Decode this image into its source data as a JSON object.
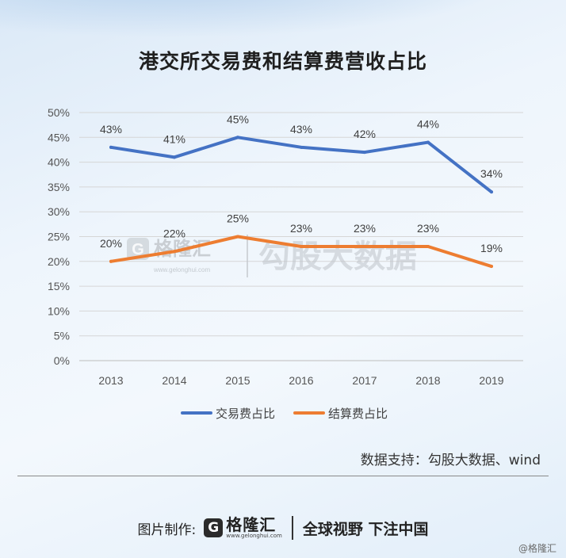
{
  "title": "港交所交易费和结算费营收占比",
  "chart_data": {
    "type": "line",
    "categories": [
      "2013",
      "2014",
      "2015",
      "2016",
      "2017",
      "2018",
      "2019"
    ],
    "series": [
      {
        "name": "交易费占比",
        "color": "#4472c4",
        "values": [
          43,
          41,
          45,
          43,
          42,
          44,
          34
        ],
        "labels": [
          "43%",
          "41%",
          "45%",
          "43%",
          "42%",
          "44%",
          "34%"
        ]
      },
      {
        "name": "结算费占比",
        "color": "#ed7d31",
        "values": [
          20,
          22,
          25,
          23,
          23,
          23,
          19
        ],
        "labels": [
          "20%",
          "22%",
          "25%",
          "23%",
          "23%",
          "23%",
          "19%"
        ]
      }
    ],
    "ylim": [
      0,
      50
    ],
    "yticks": [
      "0%",
      "5%",
      "10%",
      "15%",
      "20%",
      "25%",
      "30%",
      "35%",
      "40%",
      "45%",
      "50%"
    ],
    "grid": true,
    "legend": "bottom",
    "xlabel": "",
    "ylabel": ""
  },
  "watermark": {
    "brand": "格隆汇",
    "url": "www.gelonghui.com",
    "text": "勾股大数据"
  },
  "source": "数据支持：勾股大数据、wind",
  "footer": {
    "label": "图片制作:",
    "logo_letter": "G",
    "brand": "格隆汇",
    "brand_url": "www.gelonghui.com",
    "slogan": "全球视野 下注中国"
  },
  "corner": "@格隆汇"
}
